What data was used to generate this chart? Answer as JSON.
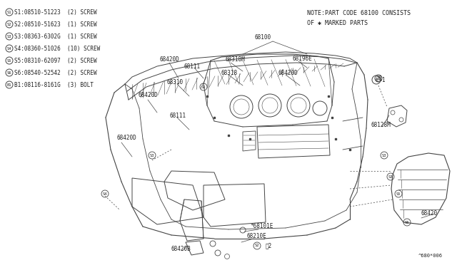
{
  "bg_color": "#ffffff",
  "line_color": "#444444",
  "text_color": "#222222",
  "note_line1": "NOTE:PART CODE 68100 CONSISTS",
  "note_line2": "OF ✱ MARKED PARTS",
  "footnote": "^680*006",
  "parts_legend": [
    {
      "sym": "S1",
      "code": "08510-51223",
      "qty": "(2)",
      "type": "SCREW"
    },
    {
      "sym": "S2",
      "code": "08510-51623",
      "qty": "(1)",
      "type": "SCREW"
    },
    {
      "sym": "S3",
      "code": "08363-6302G",
      "qty": "(1)",
      "type": "SCREW"
    },
    {
      "sym": "S4",
      "code": "08360-51026",
      "qty": "(10)",
      "type": "SCREW"
    },
    {
      "sym": "S5",
      "code": "08310-62097",
      "qty": "(2)",
      "type": "SCREW"
    },
    {
      "sym": "S6",
      "code": "08540-52542",
      "qty": "(2)",
      "type": "SCREW"
    },
    {
      "sym": "B1",
      "code": "08116-8161G",
      "qty": "(3)",
      "type": "BOLT"
    }
  ]
}
